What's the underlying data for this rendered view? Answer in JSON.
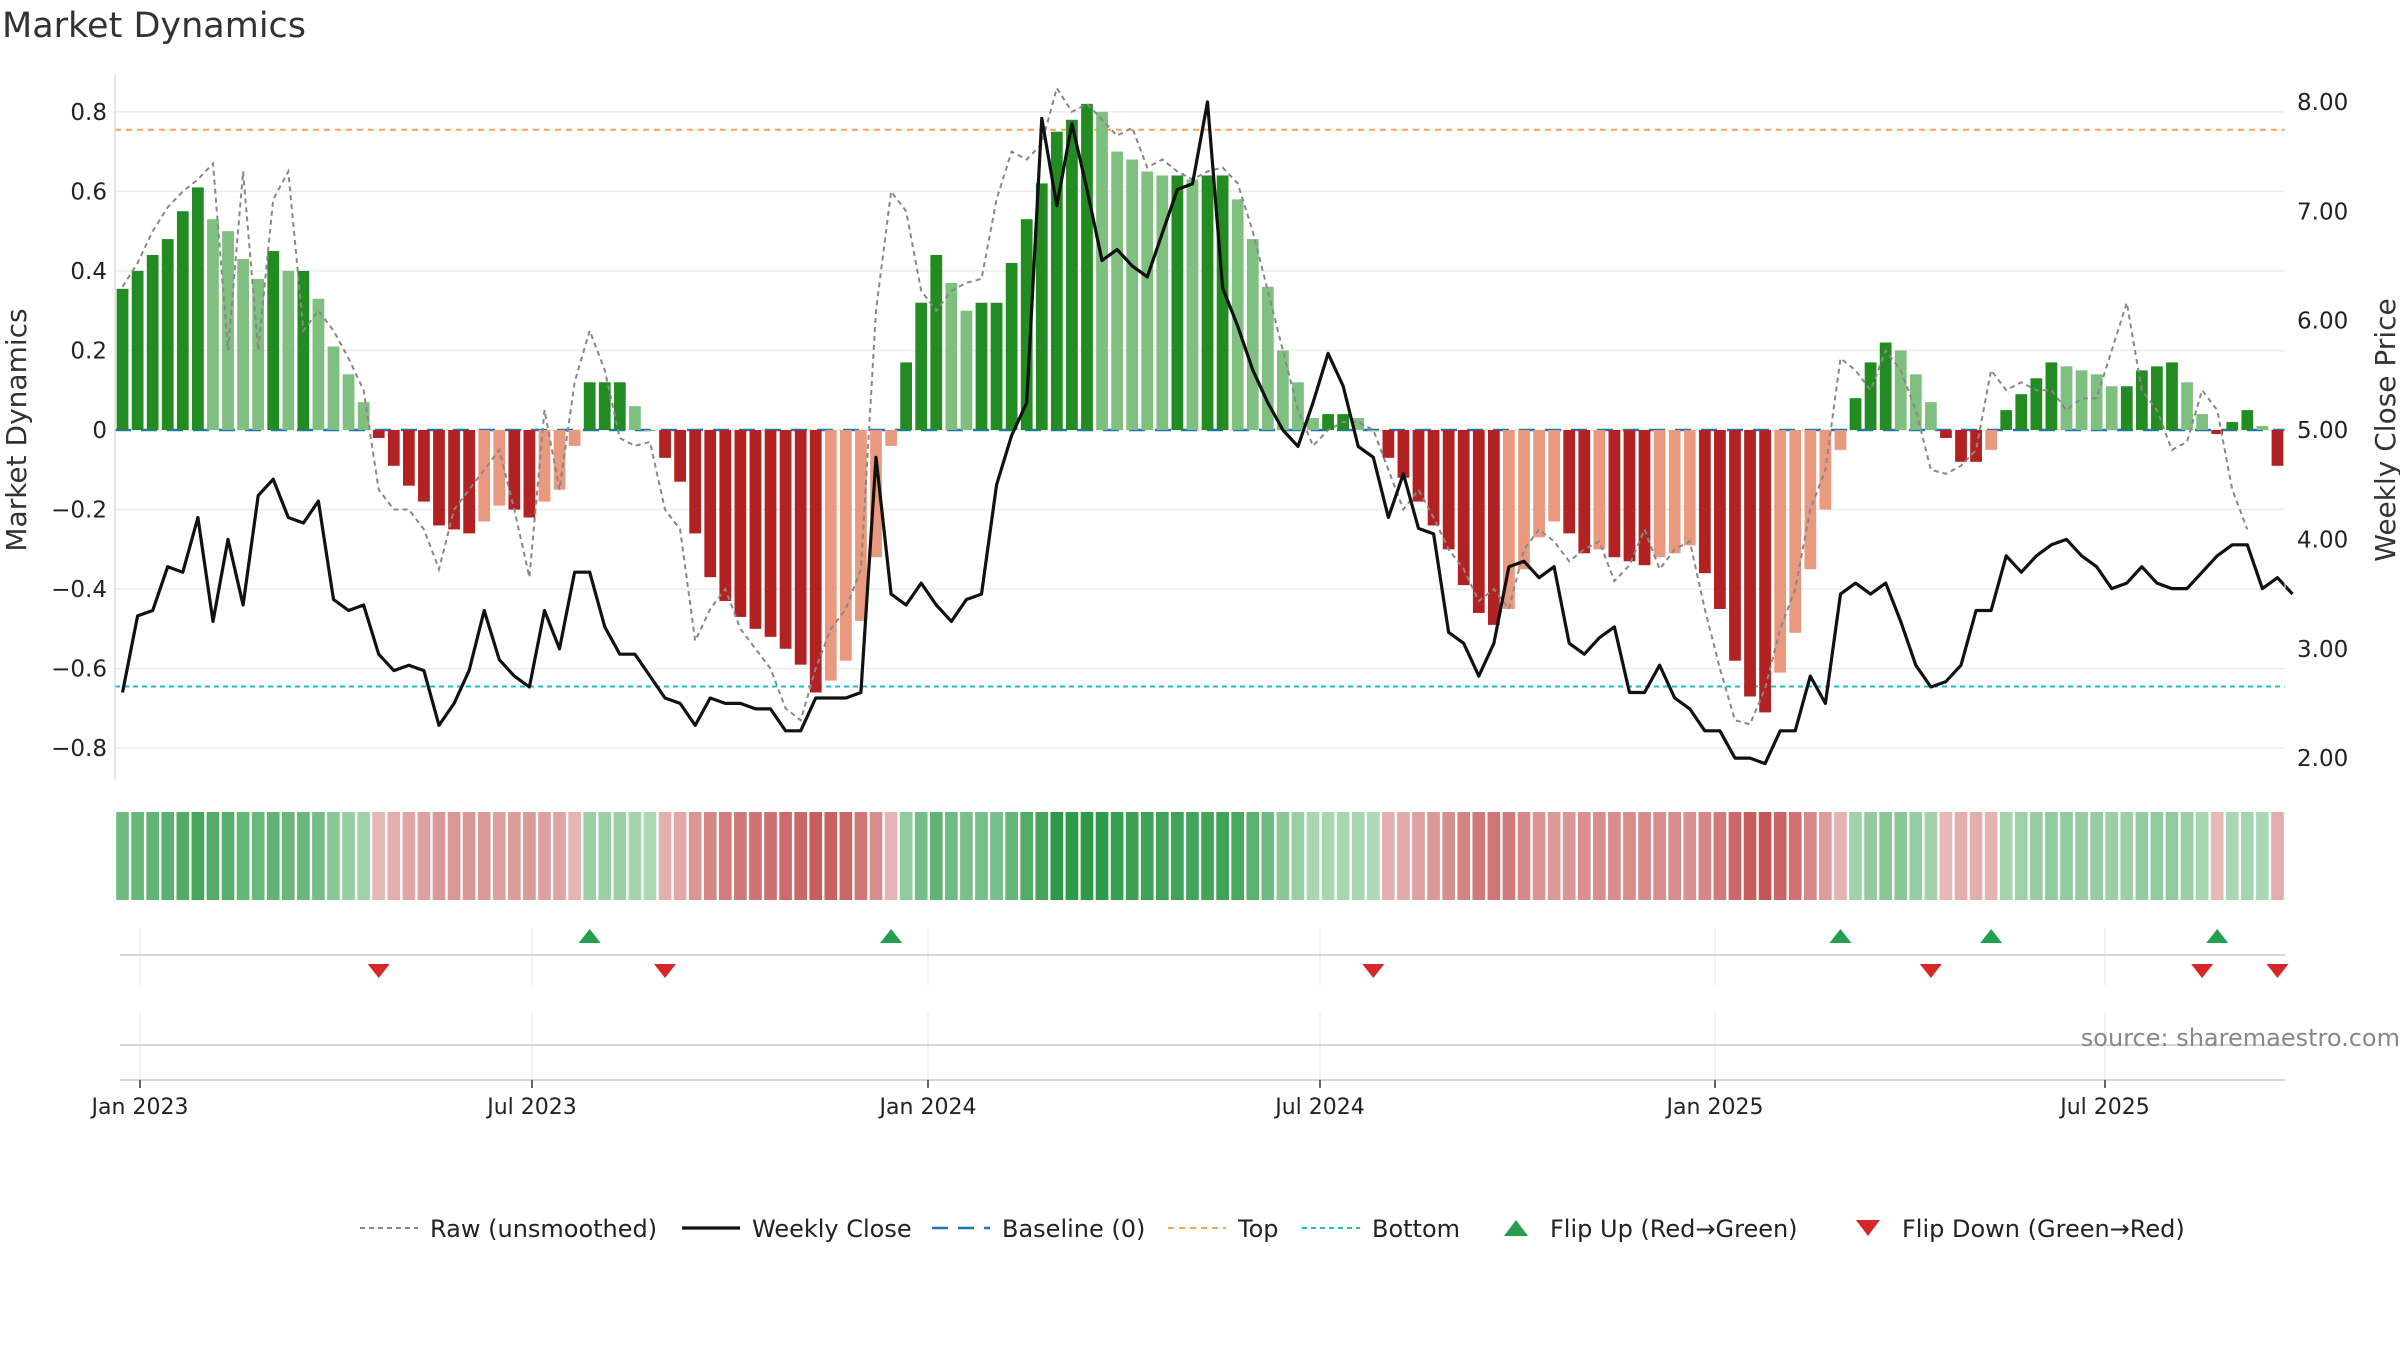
{
  "title": "Market Dynamics",
  "source": "source: sharemaestro.com",
  "colors": {
    "strong_green": "#228b22",
    "light_green": "#7fbf7f",
    "strong_red": "#b22222",
    "light_red": "#e99a7e",
    "weekly_close": "#111111",
    "raw": "#888888",
    "baseline": "#1f77b4",
    "top": "#f4a460",
    "bottom": "#20c0c0",
    "flip_up": "#22a050",
    "flip_down": "#d62728"
  },
  "chart_data": {
    "type": "bar",
    "title": "Market Dynamics",
    "ylabel_left": "Market Dynamics",
    "ylabel_right": "Weekly Close Price",
    "left_ylim": [
      -0.88,
      0.88
    ],
    "right_ylim": [
      1.8,
      8.2
    ],
    "left_ticks": [
      "0.8",
      "0.6",
      "0.4",
      "0.2",
      "0",
      "−0.2",
      "−0.4",
      "−0.6",
      "−0.8"
    ],
    "right_ticks": [
      "8.00",
      "7.00",
      "6.00",
      "5.00",
      "4.00",
      "3.00",
      "2.00"
    ],
    "x_ticks": [
      "Jan 2023",
      "Jul 2023",
      "Jan 2024",
      "Jul 2024",
      "Jan 2025",
      "Jul 2025"
    ],
    "top_level": 0.755,
    "bottom_level": -0.645,
    "baseline": 0,
    "legend": [
      "Raw (unsmoothed)",
      "Weekly Close",
      "Baseline (0)",
      "Top",
      "Bottom",
      "Flip Up (Red→Green)",
      "Flip Down (Green→Red)"
    ],
    "legend_position": "bottom-center",
    "grid": true,
    "weeks": 144,
    "dynamics": [
      0.355,
      0.4,
      0.44,
      0.48,
      0.55,
      0.61,
      0.53,
      0.5,
      0.43,
      0.38,
      0.45,
      0.4,
      0.4,
      0.33,
      0.21,
      0.14,
      0.07,
      -0.02,
      -0.09,
      -0.14,
      -0.18,
      -0.24,
      -0.25,
      -0.26,
      -0.23,
      -0.19,
      -0.2,
      -0.22,
      -0.18,
      -0.15,
      -0.04,
      0.12,
      0.12,
      0.12,
      0.06,
      0,
      -0.07,
      -0.13,
      -0.26,
      -0.37,
      -0.43,
      -0.47,
      -0.5,
      -0.52,
      -0.55,
      -0.59,
      -0.66,
      -0.63,
      -0.58,
      -0.48,
      -0.32,
      -0.04,
      0.17,
      0.32,
      0.44,
      0.37,
      0.3,
      0.32,
      0.32,
      0.42,
      0.53,
      0.62,
      0.75,
      0.78,
      0.82,
      0.8,
      0.7,
      0.68,
      0.65,
      0.64,
      0.64,
      0.63,
      0.64,
      0.64,
      0.58,
      0.48,
      0.36,
      0.2,
      0.12,
      0.03,
      0.04,
      0.04,
      0.03,
      0,
      -0.07,
      -0.12,
      -0.18,
      -0.24,
      -0.3,
      -0.39,
      -0.46,
      -0.49,
      -0.45,
      -0.35,
      -0.27,
      -0.23,
      -0.26,
      -0.31,
      -0.3,
      -0.32,
      -0.33,
      -0.34,
      -0.32,
      -0.31,
      -0.29,
      -0.36,
      -0.45,
      -0.58,
      -0.67,
      -0.71,
      -0.61,
      -0.51,
      -0.35,
      -0.2,
      -0.05,
      0.08,
      0.17,
      0.22,
      0.2,
      0.14,
      0.07,
      -0.02,
      -0.08,
      -0.08,
      -0.05,
      0.05,
      0.09,
      0.13,
      0.17,
      0.16,
      0.15,
      0.14,
      0.11,
      0.11,
      0.15,
      0.16,
      0.17,
      0.12,
      0.04,
      -0.01,
      0.02,
      0.05,
      0.01,
      -0.09
    ],
    "raw": [
      0.36,
      0.42,
      0.5,
      0.56,
      0.6,
      0.63,
      0.67,
      0.2,
      0.65,
      0.2,
      0.58,
      0.65,
      0.25,
      0.3,
      0.25,
      0.18,
      0.1,
      -0.15,
      -0.2,
      -0.2,
      -0.25,
      -0.35,
      -0.2,
      -0.15,
      -0.1,
      -0.05,
      -0.2,
      -0.37,
      0.05,
      -0.15,
      0.12,
      0.25,
      0.15,
      -0.02,
      -0.04,
      -0.03,
      -0.2,
      -0.25,
      -0.53,
      -0.45,
      -0.4,
      -0.5,
      -0.55,
      -0.6,
      -0.7,
      -0.73,
      -0.6,
      -0.5,
      -0.45,
      -0.35,
      0.3,
      0.6,
      0.55,
      0.35,
      0.3,
      0.35,
      0.37,
      0.38,
      0.58,
      0.7,
      0.68,
      0.72,
      0.86,
      0.8,
      0.82,
      0.78,
      0.74,
      0.76,
      0.66,
      0.68,
      0.65,
      0.63,
      0.65,
      0.66,
      0.62,
      0.5,
      0.35,
      0.2,
      0.05,
      -0.04,
      0,
      0.02,
      0.02,
      0,
      -0.1,
      -0.2,
      -0.15,
      -0.22,
      -0.3,
      -0.35,
      -0.43,
      -0.4,
      -0.45,
      -0.3,
      -0.25,
      -0.28,
      -0.33,
      -0.3,
      -0.28,
      -0.38,
      -0.34,
      -0.25,
      -0.35,
      -0.3,
      -0.28,
      -0.45,
      -0.6,
      -0.73,
      -0.74,
      -0.65,
      -0.5,
      -0.4,
      -0.2,
      -0.1,
      0.18,
      0.15,
      0.1,
      0.2,
      0.15,
      0.05,
      -0.1,
      -0.11,
      -0.09,
      -0.05,
      0.15,
      0.1,
      0.12,
      0.1,
      0.1,
      0.05,
      0.08,
      0.08,
      0.2,
      0.32,
      0.1,
      0.05,
      -0.05,
      -0.03,
      0.1,
      0.05,
      -0.15,
      -0.25
    ],
    "weekly_close": [
      2.6,
      3.3,
      3.35,
      3.75,
      3.7,
      4.2,
      3.25,
      4.0,
      3.4,
      4.4,
      4.55,
      4.2,
      4.15,
      4.35,
      3.45,
      3.35,
      3.4,
      2.95,
      2.8,
      2.85,
      2.8,
      2.3,
      2.5,
      2.8,
      3.35,
      2.9,
      2.75,
      2.65,
      3.35,
      3.0,
      3.7,
      3.7,
      3.2,
      2.95,
      2.95,
      2.75,
      2.55,
      2.5,
      2.3,
      2.55,
      2.5,
      2.5,
      2.45,
      2.45,
      2.25,
      2.25,
      2.55,
      2.55,
      2.55,
      2.6,
      4.75,
      3.5,
      3.4,
      3.6,
      3.4,
      3.25,
      3.45,
      3.5,
      4.5,
      4.95,
      5.25,
      7.85,
      7.05,
      7.8,
      7.2,
      6.55,
      6.65,
      6.5,
      6.4,
      6.8,
      7.2,
      7.25,
      8.0,
      6.3,
      5.95,
      5.55,
      5.25,
      5.0,
      4.85,
      5.25,
      5.7,
      5.4,
      4.85,
      4.75,
      4.2,
      4.6,
      4.1,
      4.05,
      3.15,
      3.05,
      2.75,
      3.05,
      3.75,
      3.8,
      3.65,
      3.75,
      3.05,
      2.95,
      3.1,
      3.2,
      2.6,
      2.6,
      2.85,
      2.55,
      2.45,
      2.25,
      2.25,
      2.0,
      2.0,
      1.95,
      2.25,
      2.25,
      2.75,
      2.5,
      3.5,
      3.6,
      3.5,
      3.6,
      3.25,
      2.85,
      2.65,
      2.7,
      2.85,
      3.35,
      3.35,
      3.85,
      3.7,
      3.85,
      3.95,
      4.0,
      3.85,
      3.75,
      3.55,
      3.6,
      3.75,
      3.6,
      3.55,
      3.55,
      3.7,
      3.85,
      3.95,
      3.95,
      3.55,
      3.65,
      3.5
    ],
    "flip_up_weeks": [
      31,
      51,
      114,
      124,
      139
    ],
    "flip_down_weeks": [
      17,
      36,
      83,
      120,
      138,
      143
    ],
    "regime_band": "green-red intensity per week"
  }
}
